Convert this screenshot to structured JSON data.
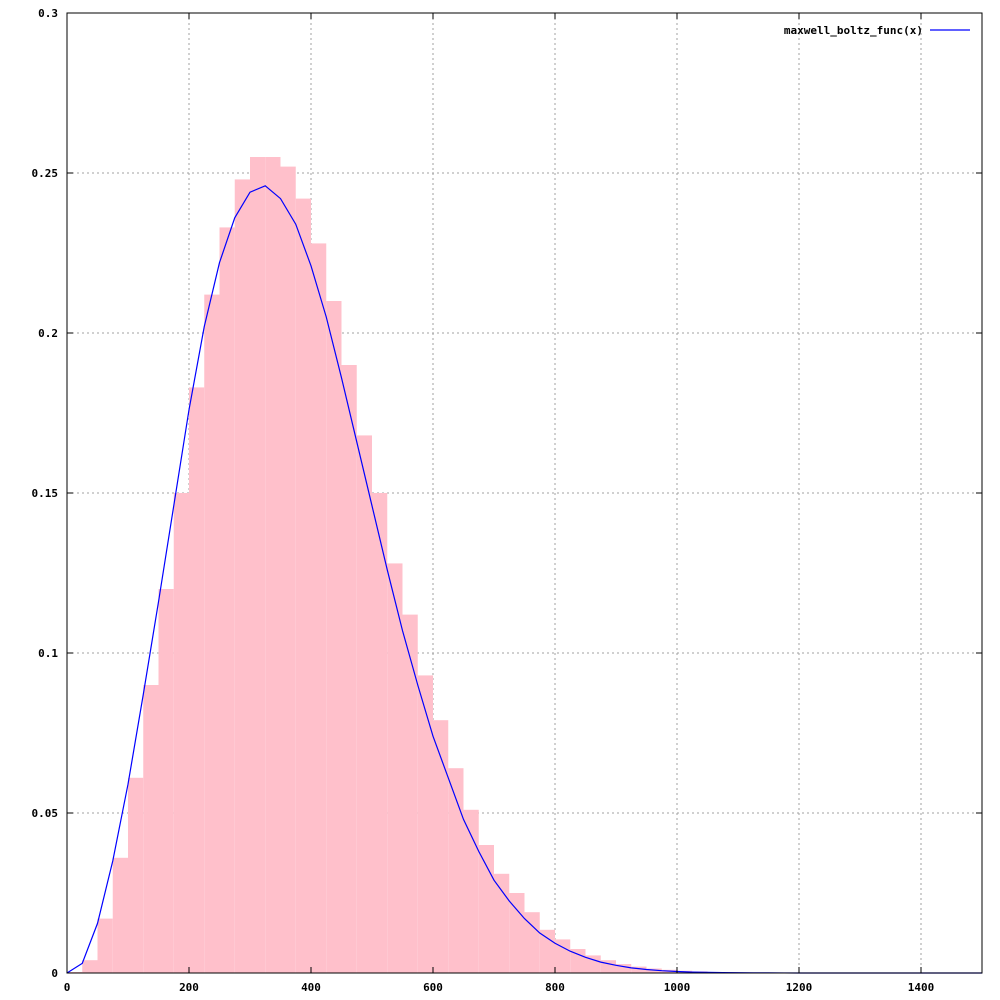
{
  "chart_data": {
    "type": "area",
    "title": "",
    "xlabel": "",
    "ylabel": "",
    "xlim": [
      0,
      1500
    ],
    "ylim": [
      0,
      0.3
    ],
    "grid": true,
    "legend_position": "top-right",
    "x_ticks": [
      {
        "value": 0,
        "label": "0"
      },
      {
        "value": 200,
        "label": "200"
      },
      {
        "value": 400,
        "label": "400"
      },
      {
        "value": 600,
        "label": "600"
      },
      {
        "value": 800,
        "label": "800"
      },
      {
        "value": 1000,
        "label": "1000"
      },
      {
        "value": 1200,
        "label": "1200"
      },
      {
        "value": 1400,
        "label": "1400"
      }
    ],
    "y_ticks": [
      {
        "value": 0,
        "label": "0"
      },
      {
        "value": 0.05,
        "label": "0.05"
      },
      {
        "value": 0.1,
        "label": "0.1"
      },
      {
        "value": 0.15,
        "label": "0.15"
      },
      {
        "value": 0.2,
        "label": "0.2"
      },
      {
        "value": 0.25,
        "label": "0.25"
      },
      {
        "value": 0.3,
        "label": "0.3"
      }
    ],
    "histogram": {
      "color": "#ffc0cb",
      "x": [
        0,
        25,
        50,
        75,
        100,
        125,
        150,
        175,
        200,
        225,
        250,
        275,
        300,
        325,
        350,
        375,
        400,
        425,
        450,
        475,
        500,
        525,
        550,
        575,
        600,
        625,
        650,
        675,
        700,
        725,
        750,
        775,
        800,
        825,
        850,
        875,
        900,
        925,
        950,
        975,
        1000,
        1025,
        1050,
        1075,
        1100,
        1125,
        1150,
        1175,
        1200
      ],
      "values": [
        0.0003,
        0.004,
        0.017,
        0.036,
        0.061,
        0.09,
        0.12,
        0.15,
        0.183,
        0.212,
        0.233,
        0.248,
        0.255,
        0.255,
        0.252,
        0.242,
        0.228,
        0.21,
        0.19,
        0.168,
        0.15,
        0.128,
        0.112,
        0.093,
        0.079,
        0.064,
        0.051,
        0.04,
        0.031,
        0.025,
        0.019,
        0.0135,
        0.0105,
        0.0075,
        0.0055,
        0.004,
        0.0028,
        0.002,
        0.0014,
        0.001,
        0.0007,
        0.0005,
        0.0003,
        0.0002,
        0.00015,
        0.0001,
        5e-05,
        3e-05,
        2e-05
      ]
    },
    "series": [
      {
        "name": "maxwell_boltz_func(x)",
        "color": "#0000ff",
        "x": [
          0,
          25,
          50,
          75,
          100,
          125,
          150,
          175,
          200,
          225,
          250,
          275,
          300,
          325,
          350,
          375,
          400,
          425,
          450,
          475,
          500,
          525,
          550,
          575,
          600,
          625,
          650,
          675,
          700,
          725,
          750,
          775,
          800,
          825,
          850,
          875,
          900,
          925,
          950,
          975,
          1000,
          1025,
          1050,
          1075,
          1100,
          1125,
          1150,
          1175,
          1200,
          1250,
          1300,
          1350,
          1400,
          1450,
          1500
        ],
        "values": [
          0,
          0.003,
          0.0155,
          0.035,
          0.059,
          0.087,
          0.116,
          0.146,
          0.176,
          0.202,
          0.222,
          0.236,
          0.244,
          0.246,
          0.242,
          0.234,
          0.221,
          0.205,
          0.186,
          0.166,
          0.146,
          0.126,
          0.107,
          0.09,
          0.074,
          0.061,
          0.048,
          0.038,
          0.029,
          0.0225,
          0.017,
          0.0125,
          0.0093,
          0.0068,
          0.0049,
          0.0034,
          0.0024,
          0.0016,
          0.0011,
          0.00072,
          0.00047,
          0.0003,
          0.00019,
          0.00012,
          7e-05,
          4e-05,
          3e-05,
          2e-05,
          1e-05,
          0,
          0,
          0,
          0,
          0,
          0
        ]
      }
    ]
  }
}
